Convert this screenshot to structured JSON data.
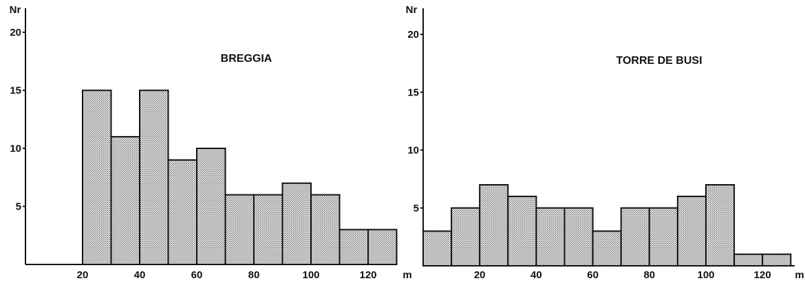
{
  "chart_data": [
    {
      "type": "bar",
      "title": "BREGGIA",
      "xlabel": "m",
      "ylabel": "Nr",
      "x_ticks": [
        20,
        40,
        60,
        80,
        100,
        120
      ],
      "y_ticks": [
        5,
        10,
        15,
        20
      ],
      "xlim": [
        0,
        130
      ],
      "ylim": [
        0,
        21
      ],
      "bin_width": 10,
      "bins": [
        {
          "x0": 20,
          "value": 15
        },
        {
          "x0": 30,
          "value": 11
        },
        {
          "x0": 40,
          "value": 15
        },
        {
          "x0": 50,
          "value": 9
        },
        {
          "x0": 60,
          "value": 10
        },
        {
          "x0": 70,
          "value": 6
        },
        {
          "x0": 80,
          "value": 6
        },
        {
          "x0": 90,
          "value": 7
        },
        {
          "x0": 100,
          "value": 6
        },
        {
          "x0": 110,
          "value": 3
        },
        {
          "x0": 120,
          "value": 3
        }
      ],
      "grid": false,
      "fill_pattern": "stipple"
    },
    {
      "type": "bar",
      "title": "TORRE DE BUSI",
      "xlabel": "m",
      "ylabel": "Nr",
      "x_ticks": [
        20,
        40,
        60,
        80,
        100,
        120
      ],
      "y_ticks": [
        5,
        10,
        15,
        20
      ],
      "xlim": [
        0,
        130
      ],
      "ylim": [
        0,
        21
      ],
      "bin_width": 10,
      "bins": [
        {
          "x0": 0,
          "value": 3
        },
        {
          "x0": 10,
          "value": 5
        },
        {
          "x0": 20,
          "value": 7
        },
        {
          "x0": 30,
          "value": 6
        },
        {
          "x0": 40,
          "value": 5
        },
        {
          "x0": 50,
          "value": 5
        },
        {
          "x0": 60,
          "value": 3
        },
        {
          "x0": 70,
          "value": 5
        },
        {
          "x0": 80,
          "value": 5
        },
        {
          "x0": 90,
          "value": 6
        },
        {
          "x0": 100,
          "value": 7
        },
        {
          "x0": 110,
          "value": 1
        },
        {
          "x0": 120,
          "value": 1
        }
      ],
      "grid": false,
      "fill_pattern": "stipple"
    }
  ]
}
